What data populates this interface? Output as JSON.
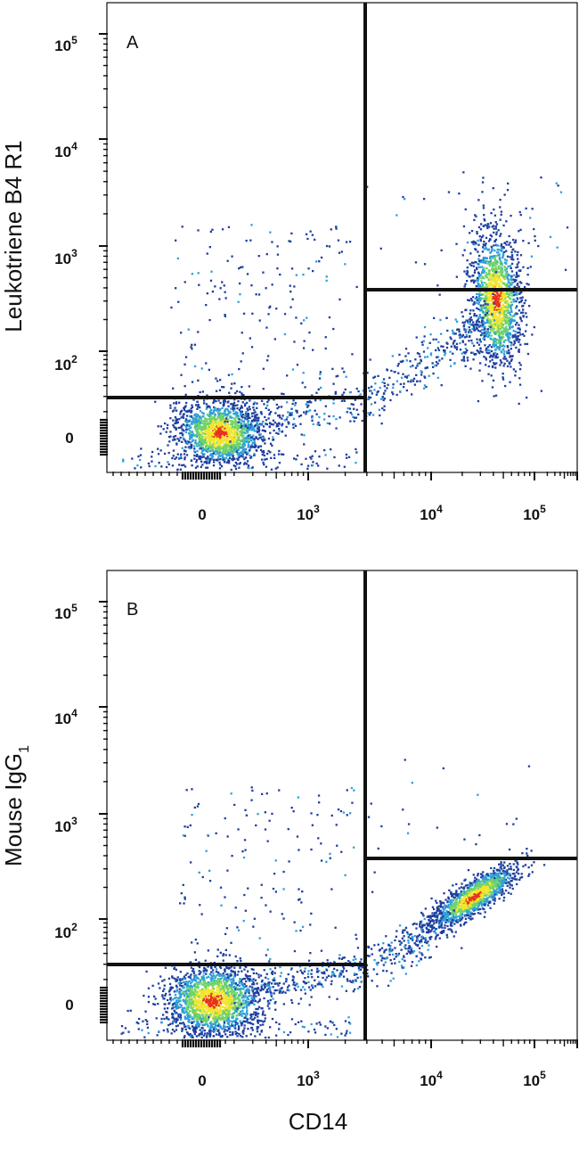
{
  "figure": {
    "xlabel": "CD14",
    "colors": {
      "low": "#1f3f9f",
      "mid": "#2fa0d8",
      "midhigh": "#6fd36a",
      "high": "#f2e531",
      "peak": "#e8321f",
      "gate": "#111111"
    }
  },
  "chart_data": [
    {
      "type": "scatter",
      "panel": "A",
      "xlabel": "CD14",
      "ylabel": "Leukotriene B4 R1",
      "x_ticks": [
        "0",
        "10^3",
        "10^4",
        "10^5"
      ],
      "y_ticks": [
        "0",
        "10^2",
        "10^3",
        "10^4",
        "10^5"
      ],
      "scale": "biexponential",
      "gates": {
        "vertical_x": 2800,
        "left_horizontal_y": 50,
        "right_horizontal_y": 480
      },
      "populations": [
        {
          "name": "CD14- cluster",
          "x_center": 80,
          "y_center": 5,
          "density": "high"
        },
        {
          "name": "CD14+ cluster",
          "x_center": 48000,
          "y_center": 350,
          "density": "high"
        }
      ]
    },
    {
      "type": "scatter",
      "panel": "B",
      "xlabel": "CD14",
      "ylabel": "Mouse IgG1",
      "x_ticks": [
        "0",
        "10^3",
        "10^4",
        "10^5"
      ],
      "y_ticks": [
        "0",
        "10^2",
        "10^3",
        "10^4",
        "10^5"
      ],
      "scale": "biexponential",
      "gates": {
        "vertical_x": 2800,
        "left_horizontal_y": 50,
        "right_horizontal_y": 480
      },
      "populations": [
        {
          "name": "CD14- cluster",
          "x_center": 60,
          "y_center": 5,
          "density": "high"
        },
        {
          "name": "CD14+ cluster",
          "x_center": 33000,
          "y_center": 230,
          "density": "high"
        }
      ]
    }
  ]
}
